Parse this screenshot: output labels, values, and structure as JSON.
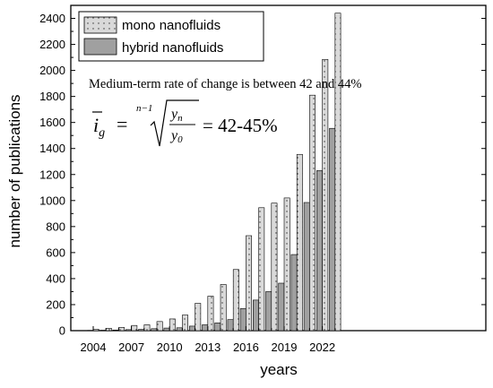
{
  "chart_data": {
    "type": "bar",
    "xlabel": "years",
    "ylabel": "number of publications",
    "ylim": [
      0,
      2500
    ],
    "yticks": [
      0,
      200,
      400,
      600,
      800,
      1000,
      1200,
      1400,
      1600,
      1800,
      2000,
      2200,
      2400
    ],
    "xtick_labels": [
      "2004",
      "2007",
      "2010",
      "2013",
      "2016",
      "2019",
      "2022"
    ],
    "categories": [
      "2004",
      "2005",
      "2006",
      "2007",
      "2008",
      "2009",
      "2010",
      "2011",
      "2012",
      "2013",
      "2014",
      "2015",
      "2016",
      "2017",
      "2018",
      "2019",
      "2020",
      "2021",
      "2022",
      "2023"
    ],
    "series": [
      {
        "name": "hybrid nanofluids",
        "color": "#a0a0a0",
        "pattern": "solid",
        "values": [
          2,
          3,
          5,
          8,
          10,
          15,
          20,
          22,
          35,
          45,
          60,
          85,
          170,
          235,
          300,
          365,
          585,
          985,
          1230,
          1555
        ]
      },
      {
        "name": "mono nanofluids",
        "color": "#d9d9d9",
        "pattern": "dotted",
        "values": [
          10,
          18,
          25,
          40,
          45,
          70,
          90,
          120,
          210,
          265,
          355,
          470,
          730,
          945,
          980,
          1020,
          1355,
          1810,
          2085,
          2440
        ]
      }
    ],
    "legend_position": "top-left",
    "annotation": "Medium-term rate of change is between 42 and 44%",
    "formula": {
      "lhs_base": "i",
      "lhs_sub": "g",
      "root_index": "n−1",
      "numerator": "y",
      "numerator_sub": "n",
      "denominator": "y",
      "denominator_sub": "0",
      "result": "= 42-45%"
    }
  }
}
